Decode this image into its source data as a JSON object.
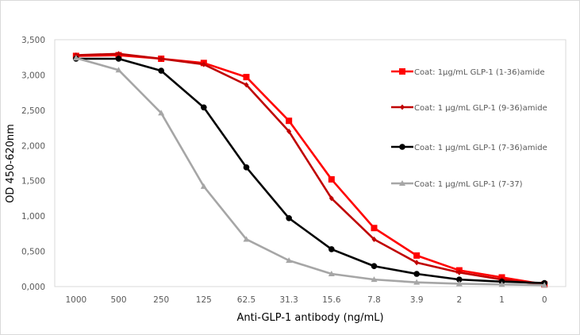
{
  "chart_data": {
    "type": "line",
    "title": "",
    "xlabel": "Anti-GLP-1 antibody (ng/mL)",
    "ylabel": "OD 450-620nm",
    "categories": [
      "1000",
      "500",
      "250",
      "125",
      "62.5",
      "31.3",
      "15.6",
      "7.8",
      "3.9",
      "2",
      "1",
      "0"
    ],
    "ylim": [
      0,
      3.5
    ],
    "yticks": [
      0,
      0.5,
      1.0,
      1.5,
      2.0,
      2.5,
      3.0,
      3.5
    ],
    "ytick_labels": [
      "0,000",
      "0,500",
      "1,000",
      "1,500",
      "2,000",
      "2,500",
      "3,000",
      "3,500"
    ],
    "grid": false,
    "legend_position": "right",
    "series": [
      {
        "name": "Coat: 1µg/mL GLP-1 (1-36)amide",
        "color": "#ff0000",
        "marker": "square",
        "values": [
          3.27,
          3.28,
          3.23,
          3.17,
          2.97,
          2.35,
          1.52,
          0.83,
          0.44,
          0.23,
          0.13,
          0.03
        ]
      },
      {
        "name": "Coat: 1 µg/mL GLP-1 (9-36)amide",
        "color": "#c00000",
        "marker": "diamond",
        "values": [
          3.28,
          3.3,
          3.23,
          3.15,
          2.86,
          2.2,
          1.25,
          0.67,
          0.34,
          0.2,
          0.1,
          0.03
        ]
      },
      {
        "name": "Coat: 1 µg/mL GLP-1 (7-36)amide",
        "color": "#000000",
        "marker": "circle",
        "values": [
          3.23,
          3.23,
          3.06,
          2.54,
          1.69,
          0.97,
          0.53,
          0.29,
          0.18,
          0.1,
          0.07,
          0.05
        ]
      },
      {
        "name": "Coat: 1 µg/mL GLP-1 (7-37)",
        "color": "#a6a6a6",
        "marker": "triangle",
        "values": [
          3.24,
          3.07,
          2.46,
          1.42,
          0.67,
          0.37,
          0.18,
          0.1,
          0.06,
          0.04,
          0.03,
          0.02
        ]
      }
    ]
  }
}
